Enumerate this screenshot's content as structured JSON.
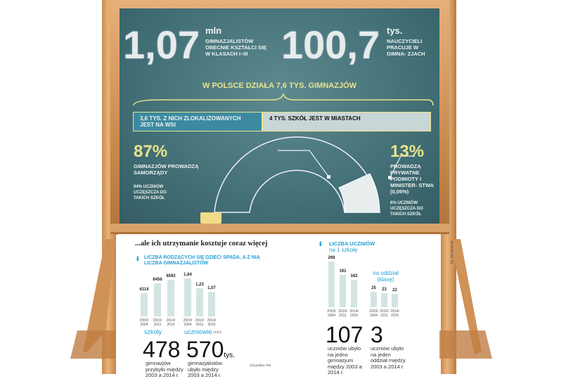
{
  "board": {
    "stat1": {
      "value": "1,07",
      "unit": "mln",
      "label": "GIMNAZJALISTÓW OBECNIE KSZTAŁCI SIĘ W KLASACH I–III"
    },
    "stat2": {
      "value": "100,7",
      "unit": "tys.",
      "label": "NAUCZYCIELI PRACUJE W GIMNA- ZJACH"
    },
    "headline": "W POLSCE DZIAŁA 7,6 TYS. GIMNAZJÓW",
    "rural": "3,6 TYS. Z NICH ZLOKALIZOWANYCH JEST NA WSI",
    "urban": "4 TYS. SZKÓŁ JEST W MIASTACH",
    "public": {
      "value": "87%",
      "label": "GIMNAZJÓW PROWADZĄ SAMORZĄDY",
      "note": "94% UCZNIÓW UCZĘSZCZA DO TAKICH SZKÓŁ"
    },
    "private": {
      "value": "13%",
      "label": "PROWADZĄ PRYWATNE PODMIOTY I MINISTER- STWA (0,05%)",
      "note": "6% UCZNIÓW UCZĘSZCZA DO TAKICH SZKÓŁ"
    },
    "colors": {
      "board": "#4a767c",
      "chalk_yellow": "#e9e48a",
      "rural_box": "#3d8aa0",
      "urban_box": "#c9d6d8"
    }
  },
  "lower": {
    "title": "...ale ich utrzymanie kosztuje coraz więcej",
    "section1": "LICZBA RODZĄCYCH SIĘ DZIECI SPADA, A Z NIĄ LICZBA GIMNAZJALISTÓW",
    "section2_title": "LICZBA UCZNIÓW",
    "section2_sub": "na 1 szkołę",
    "per_class_label": "na oddział (klasę)",
    "facts": [
      {
        "value": "478",
        "unit": "",
        "text": "gimnazjów przybyło między 2003 a 2014 r."
      },
      {
        "value": "570",
        "unit": "tys.",
        "text": "gimnazjalistów ubyło między 2003 a 2014 r."
      },
      {
        "value": "107",
        "unit": "",
        "text": "uczniów ubyło na jedno gimnazjum między 2003 a 2014 r."
      },
      {
        "value": "3",
        "unit": "",
        "text": "uczniów ubyło na jeden oddział między 2003 a 2014 r."
      }
    ],
    "credit": "infografika: RM",
    "photo_credit": "fot. Shutterstock",
    "accent": "#1fa0d8"
  },
  "chart_data": [
    {
      "type": "bar",
      "xlabel": "szkoły",
      "categories": [
        "2003/ 2004",
        "2010/ 2011",
        "2014/ 2015"
      ],
      "values": [
        6114,
        6456,
        6592
      ],
      "labels": [
        "6114",
        "6456",
        "6592"
      ]
    },
    {
      "type": "bar",
      "xlabel": "uczniowie",
      "unit": "(mln)",
      "categories": [
        "2003/ 2004",
        "2010/ 2011",
        "2014/ 2015"
      ],
      "values": [
        1.64,
        1.23,
        1.07
      ],
      "labels": [
        "1,64",
        "1,23",
        "1,07"
      ]
    },
    {
      "type": "bar",
      "xlabel": "na 1 szkołę",
      "categories": [
        "2003/ 2004",
        "2010/ 2011",
        "2014/ 2015"
      ],
      "values": [
        269,
        191,
        162
      ],
      "labels": [
        "269",
        "191",
        "162"
      ]
    },
    {
      "type": "bar",
      "xlabel": "na oddział (klasę)",
      "categories": [
        "2003/ 2004",
        "2010/ 2011",
        "2014/ 2015"
      ],
      "values": [
        25,
        23,
        22
      ],
      "labels": [
        "25",
        "23",
        "22"
      ]
    }
  ]
}
